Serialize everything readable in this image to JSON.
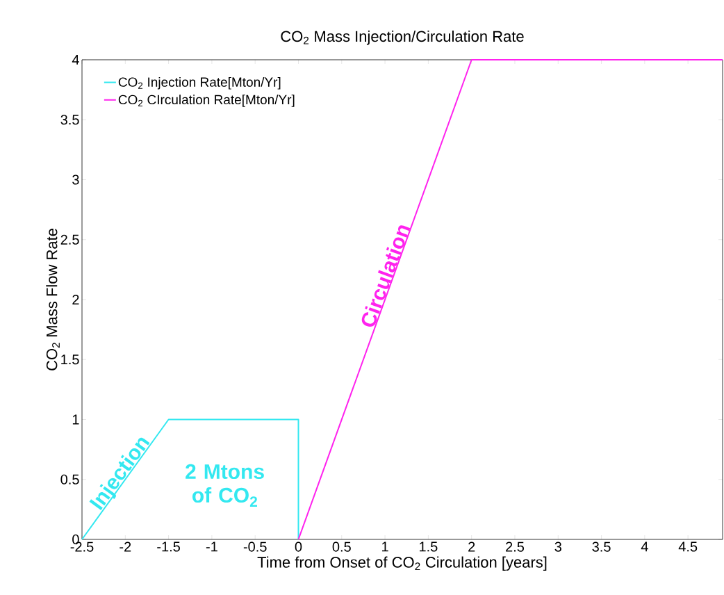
{
  "chart_data": {
    "type": "line",
    "title": "CO$_{2}$ Mass Injection/Circulation Rate",
    "xlabel": "Time from Onset of CO$_{2}$ Circulation [years]",
    "ylabel": "CO$_{2}$ Mass Flow Rate",
    "xlim": [
      -2.5,
      4.9
    ],
    "ylim": [
      0,
      4
    ],
    "xticks": [
      -2.5,
      -2,
      -1.5,
      -1,
      -0.5,
      0,
      0.5,
      1,
      1.5,
      2,
      2.5,
      3,
      3.5,
      4,
      4.5
    ],
    "yticks": [
      0,
      0.5,
      1,
      1.5,
      2,
      2.5,
      3,
      3.5,
      4
    ],
    "series": [
      {
        "name": "CO$_{2}$ Injection Rate[Mton/Yr]",
        "color": "#33e8f0",
        "x": [
          -2.5,
          -1.5,
          0,
          0
        ],
        "values": [
          0,
          1,
          1,
          0
        ]
      },
      {
        "name": "CO$_{2}$ CIrculation Rate[Mton/Yr]",
        "color": "#ff22ee",
        "x": [
          0,
          2,
          4.9
        ],
        "values": [
          0,
          4,
          4
        ]
      }
    ],
    "annotations": [
      "Injection",
      "2 Mtons of CO$_{2}$",
      "Circulation"
    ],
    "legend": "top left",
    "grid": false,
    "marker": "none",
    "line_style": "solid"
  }
}
